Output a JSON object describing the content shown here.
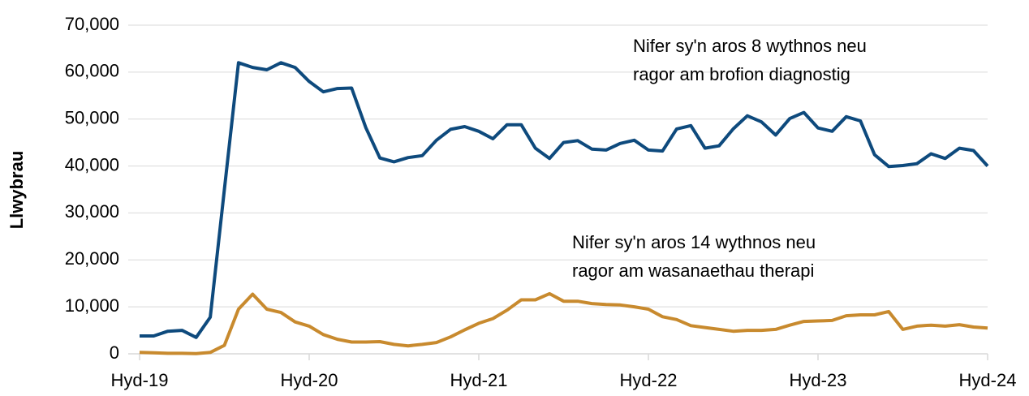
{
  "chart_data": {
    "type": "line",
    "ylabel": "Llwybrau",
    "categories": [
      "Hyd-19",
      null,
      null,
      null,
      null,
      null,
      null,
      null,
      null,
      null,
      null,
      null,
      "Hyd-20",
      null,
      null,
      null,
      null,
      null,
      null,
      null,
      null,
      null,
      null,
      null,
      "Hyd-21",
      null,
      null,
      null,
      null,
      null,
      null,
      null,
      null,
      null,
      null,
      null,
      "Hyd-22",
      null,
      null,
      null,
      null,
      null,
      null,
      null,
      null,
      null,
      null,
      null,
      "Hyd-23",
      null,
      null,
      null,
      null,
      null,
      null,
      null,
      null,
      null,
      null,
      null,
      "Hyd-24"
    ],
    "series": [
      {
        "color": "#0e4a7d",
        "values": [
          3800,
          3800,
          4800,
          5000,
          3500,
          7800,
          35000,
          62000,
          61000,
          60500,
          62000,
          61000,
          58000,
          55800,
          56500,
          56600,
          48200,
          41700,
          40900,
          41800,
          42200,
          45500,
          47800,
          48400,
          47400,
          45800,
          48800,
          48800,
          43800,
          41600,
          45000,
          45400,
          43600,
          43400,
          44800,
          45500,
          43400,
          43200,
          47900,
          48600,
          43800,
          44300,
          47900,
          50700,
          49400,
          46600,
          50100,
          51400,
          48100,
          47400,
          50500,
          49600,
          42400,
          39900,
          40100,
          40500,
          42600,
          41600,
          43800,
          43300,
          40000
        ]
      },
      {
        "color": "#c88a2e",
        "values": [
          300,
          200,
          100,
          100,
          50,
          300,
          1800,
          9500,
          12700,
          9500,
          8800,
          6800,
          5900,
          4100,
          3100,
          2500,
          2500,
          2600,
          2000,
          1700,
          2000,
          2400,
          3600,
          5100,
          6500,
          7500,
          9300,
          11500,
          11500,
          12800,
          11200,
          11200,
          10700,
          10500,
          10400,
          10000,
          9500,
          7900,
          7300,
          6000,
          5600,
          5200,
          4800,
          5000,
          5000,
          5200,
          6100,
          6900,
          7000,
          7100,
          8100,
          8300,
          8300,
          9000,
          5200,
          5900,
          6100,
          5900,
          6200,
          5700,
          5500
        ]
      }
    ],
    "annotations": [
      [
        "Nifer sy'n aros 8 wythnos neu",
        "ragor am brofion diagnostig"
      ],
      [
        "Nifer sy'n aros 14 wythnos neu",
        "ragor am wasanaethau therapi"
      ]
    ],
    "ylim": [
      0,
      70000
    ],
    "yticks": [
      0,
      {
        "value": 10000,
        "label": "10,000"
      },
      {
        "value": 20000,
        "label": "20,000"
      },
      {
        "value": 30000,
        "label": "30,000"
      },
      {
        "value": 40000,
        "label": "40,000"
      },
      {
        "value": 50000,
        "label": "50,000"
      },
      {
        "value": 60000,
        "label": "60,000"
      },
      {
        "value": 70000,
        "label": "70,000"
      }
    ],
    "grid": true
  }
}
